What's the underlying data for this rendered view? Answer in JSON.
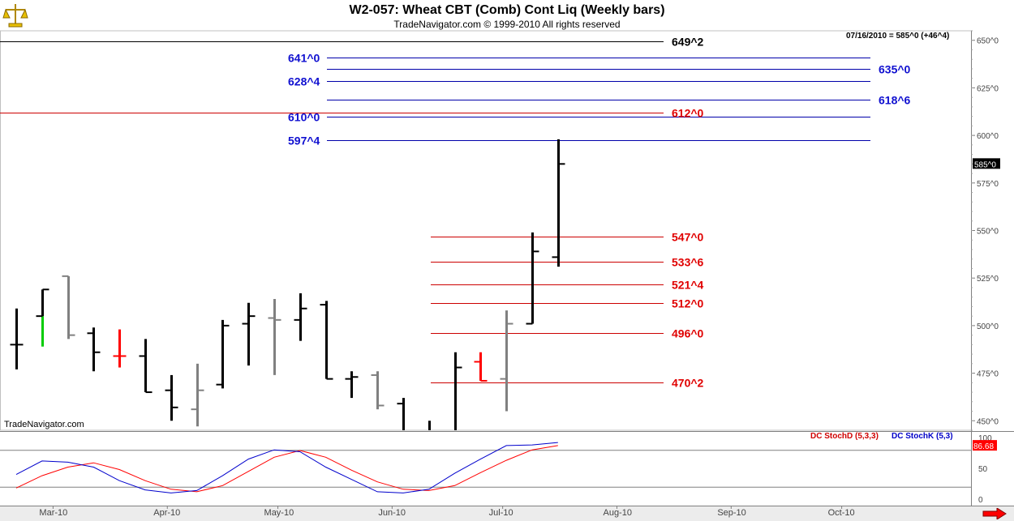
{
  "header": {
    "title": "W2-057:  Wheat CBT (Comb) Cont Liq  (Weekly bars)",
    "subtitle": "TradeNavigator.com © 1999-2010 All rights reserved",
    "watermark": "TradeNavigator.com",
    "status": "07/16/2010 = 585^0 (+46^4)"
  },
  "colors": {
    "up": "#000000",
    "down": "#000000",
    "gray": "#808080",
    "green": "#00cc00",
    "red": "#ff0000",
    "blue_level": "#0000aa",
    "red_level": "#cc0000",
    "stoch_d": "#ff0000",
    "stoch_k": "#0000cc"
  },
  "chart_data": {
    "type": "ohlc",
    "price_axis": {
      "min": 445,
      "max": 655,
      "ticks": [
        "650^0",
        "625^0",
        "600^0",
        "575^0",
        "550^0",
        "525^0",
        "500^0",
        "475^0",
        "450^0"
      ],
      "tick_values": [
        650,
        625,
        600,
        575,
        550,
        525,
        500,
        475,
        450
      ]
    },
    "last_price_label": "585^0",
    "x_labels": [
      "Mar-10",
      "Apr-10",
      "May-10",
      "Jun-10",
      "Jul-10",
      "Aug-10",
      "Sep-10",
      "Oct-10"
    ],
    "bars": [
      {
        "date": "2010-02-19",
        "o": 490,
        "h": 509,
        "l": 477,
        "c": 490,
        "color": "black"
      },
      {
        "date": "2010-02-26",
        "o": 505,
        "h": 519,
        "l": 489,
        "c": 519,
        "color": "green"
      },
      {
        "date": "2010-03-05",
        "o": 526,
        "h": 526,
        "l": 493,
        "c": 495,
        "color": "gray"
      },
      {
        "date": "2010-03-12",
        "o": 496,
        "h": 499,
        "l": 476,
        "c": 486,
        "color": "black"
      },
      {
        "date": "2010-03-19",
        "o": 484,
        "h": 498,
        "l": 478,
        "c": 484,
        "color": "red"
      },
      {
        "date": "2010-03-26",
        "o": 484,
        "h": 493,
        "l": 465,
        "c": 465,
        "color": "black"
      },
      {
        "date": "2010-04-02",
        "o": 466,
        "h": 474,
        "l": 450,
        "c": 457,
        "color": "black"
      },
      {
        "date": "2010-04-09",
        "o": 456,
        "h": 480,
        "l": 447,
        "c": 466,
        "color": "gray"
      },
      {
        "date": "2010-04-16",
        "o": 469,
        "h": 503,
        "l": 467,
        "c": 500,
        "color": "black"
      },
      {
        "date": "2010-04-23",
        "o": 501,
        "h": 512,
        "l": 479,
        "c": 505,
        "color": "black"
      },
      {
        "date": "2010-04-30",
        "o": 504,
        "h": 514,
        "l": 474,
        "c": 503,
        "color": "gray"
      },
      {
        "date": "2010-05-07",
        "o": 503,
        "h": 517,
        "l": 492,
        "c": 509,
        "color": "black"
      },
      {
        "date": "2010-05-14",
        "o": 511,
        "h": 513,
        "l": 472,
        "c": 472,
        "color": "black"
      },
      {
        "date": "2010-05-21",
        "o": 472,
        "h": 476,
        "l": 462,
        "c": 473,
        "color": "black"
      },
      {
        "date": "2010-05-28",
        "o": 474,
        "h": 476,
        "l": 456,
        "c": 458,
        "color": "gray"
      },
      {
        "date": "2010-06-04",
        "o": 459,
        "h": 462,
        "l": 435,
        "c": 440,
        "color": "black"
      },
      {
        "date": "2010-06-11",
        "o": 440,
        "h": 450,
        "l": 430,
        "c": 443,
        "color": "black"
      },
      {
        "date": "2010-06-18",
        "o": 444,
        "h": 486,
        "l": 444,
        "c": 478,
        "color": "black"
      },
      {
        "date": "2010-06-25",
        "o": 481,
        "h": 486,
        "l": 471,
        "c": 471,
        "color": "red"
      },
      {
        "date": "2010-07-02",
        "o": 472,
        "h": 508,
        "l": 455,
        "c": 501,
        "color": "gray"
      },
      {
        "date": "2010-07-09",
        "o": 501,
        "h": 549,
        "l": 501,
        "c": 539,
        "color": "black"
      },
      {
        "date": "2010-07-16",
        "o": 536,
        "h": 598,
        "l": 531,
        "c": 585,
        "color": "black"
      }
    ],
    "levels": [
      {
        "label": "649^2",
        "value": 649.25,
        "color": "black",
        "x_start": 0,
        "x_end": 818,
        "label_side": "right"
      },
      {
        "label": "641^0",
        "value": 641,
        "color": "blue",
        "x_start": 403,
        "x_end": 1073,
        "label_side": "left"
      },
      {
        "label": "635^0",
        "value": 635,
        "color": "blue",
        "x_start": 403,
        "x_end": 1073,
        "label_side": "right"
      },
      {
        "label": "628^4",
        "value": 628.5,
        "color": "blue",
        "x_start": 403,
        "x_end": 1073,
        "label_side": "left"
      },
      {
        "label": "618^6",
        "value": 618.75,
        "color": "blue",
        "x_start": 403,
        "x_end": 1073,
        "label_side": "right"
      },
      {
        "label": "612^0",
        "value": 612,
        "color": "red",
        "x_start": 0,
        "x_end": 818,
        "label_side": "right"
      },
      {
        "label": "610^0",
        "value": 610,
        "color": "blue",
        "x_start": 403,
        "x_end": 1073,
        "label_side": "left"
      },
      {
        "label": "597^4",
        "value": 597.5,
        "color": "blue",
        "x_start": 403,
        "x_end": 1073,
        "label_side": "left"
      },
      {
        "label": "547^0",
        "value": 547,
        "color": "red",
        "x_start": 531,
        "x_end": 818,
        "label_side": "right"
      },
      {
        "label": "533^6",
        "value": 533.75,
        "color": "red",
        "x_start": 531,
        "x_end": 818,
        "label_side": "right"
      },
      {
        "label": "521^4",
        "value": 521.5,
        "color": "red",
        "x_start": 531,
        "x_end": 818,
        "label_side": "right"
      },
      {
        "label": "512^0",
        "value": 512,
        "color": "red",
        "x_start": 531,
        "x_end": 818,
        "label_side": "right"
      },
      {
        "label": "496^0",
        "value": 496,
        "color": "red",
        "x_start": 531,
        "x_end": 818,
        "label_side": "right"
      },
      {
        "label": "470^2",
        "value": 470.25,
        "color": "red",
        "x_start": 531,
        "x_end": 818,
        "label_side": "right"
      }
    ],
    "stochastic": {
      "d_label": "DC StochD (5,3,3)",
      "k_label": "DC StochK (5,3)",
      "last_value_label": "86.68",
      "axis_min": 0,
      "axis_max": 100,
      "ticks": [
        "100",
        "50",
        "0"
      ],
      "tick_values": [
        100,
        50,
        0
      ],
      "bands": [
        80,
        20
      ],
      "k_values": [
        40,
        62,
        60,
        52,
        30,
        15,
        10,
        14,
        38,
        65,
        80,
        77,
        52,
        32,
        12,
        10,
        16,
        42,
        65,
        87,
        88,
        92
      ],
      "d_values": [
        18,
        38,
        52,
        59,
        48,
        30,
        16,
        12,
        22,
        45,
        68,
        79,
        68,
        47,
        28,
        16,
        14,
        22,
        43,
        63,
        80,
        87
      ]
    }
  }
}
